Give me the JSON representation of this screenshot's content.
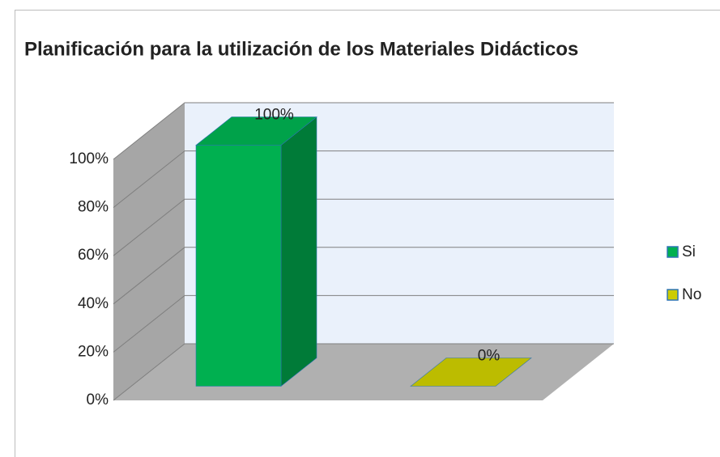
{
  "chart_data": {
    "type": "bar3d",
    "title": "Planificación para la utilización de los Materiales Didácticos",
    "categories": [
      "Si",
      "No"
    ],
    "values": [
      100,
      0
    ],
    "value_labels": [
      "100%",
      "0%"
    ],
    "colors": [
      "#00b050",
      "#cccc00"
    ],
    "ylim": [
      0,
      100
    ],
    "yticks": [
      {
        "value": 0,
        "label": "0%"
      },
      {
        "value": 20,
        "label": "20%"
      },
      {
        "value": 40,
        "label": "40%"
      },
      {
        "value": 60,
        "label": "60%"
      },
      {
        "value": 80,
        "label": "80%"
      },
      {
        "value": 100,
        "label": "100%"
      }
    ],
    "grid": true,
    "legend": "right"
  }
}
